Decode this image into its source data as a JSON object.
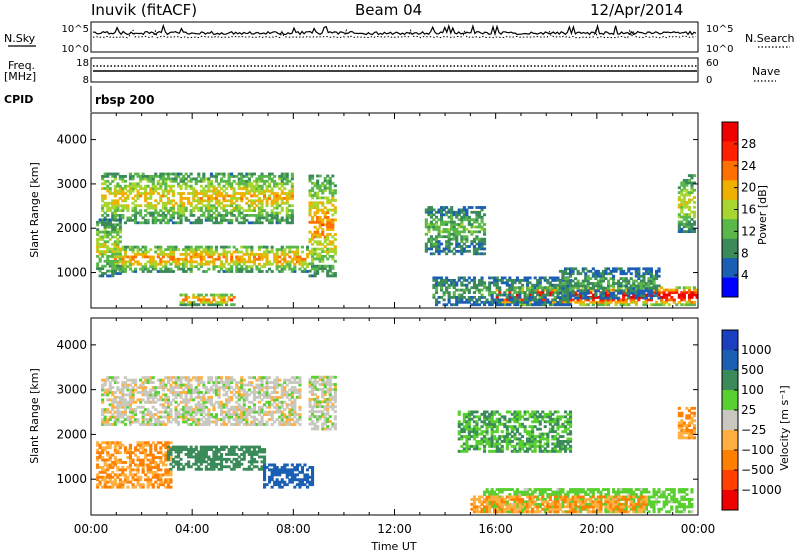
{
  "header": {
    "station": "Inuvik (fitACF)",
    "beam": "Beam 04",
    "date": "12/Apr/2014"
  },
  "noise_panel": {
    "left_label": "N.Sky",
    "right_label": "N.Search",
    "left_ticks": [
      "10^5",
      "10^0"
    ],
    "right_ticks": [
      "10^5",
      "10^0"
    ]
  },
  "freq_panel": {
    "left_label_top": "Freq.",
    "left_label_unit": "[MHz]",
    "left_ticks": [
      "18",
      "8"
    ],
    "right_label": "Nave",
    "right_ticks": [
      "60",
      "0"
    ]
  },
  "cpid_panel": {
    "label": "CPID",
    "value": "rbsp 200"
  },
  "colors": {
    "power_scale": [
      "#0000ff",
      "#1a5fb4",
      "#3a8a5a",
      "#5ab84a",
      "#a8d630",
      "#f0b000",
      "#ff7000",
      "#ff2000",
      "#ee0000"
    ],
    "velocity_scale": [
      "#ee0000",
      "#ff4000",
      "#ff8000",
      "#ffb040",
      "#c8c8c0",
      "#5ad030",
      "#3a8a5a",
      "#1a5fb4",
      "#1a40c0"
    ],
    "ground_gray": "#c6c6c0"
  },
  "chart_data": [
    {
      "type": "heatmap",
      "name": "power",
      "ylabel": "Slant Range [km]",
      "ylim": [
        200,
        4600
      ],
      "yticks": [
        "4000",
        "3000",
        "2000",
        "1000"
      ],
      "xlim": [
        0,
        24
      ],
      "colorbar": {
        "label": "Power [dB]",
        "ticks": [
          "28",
          "24",
          "20",
          "16",
          "12",
          "8",
          "4"
        ],
        "range": [
          0,
          30
        ]
      },
      "echo_regions": [
        {
          "t_start": 0.4,
          "t_end": 7.9,
          "r_low": 2100,
          "r_high": 3250,
          "power": 16
        },
        {
          "t_start": 0.8,
          "t_end": 8.5,
          "r_low": 1000,
          "r_high": 1600,
          "power": 18
        },
        {
          "t_start": 0.2,
          "t_end": 1.2,
          "r_low": 900,
          "r_high": 2200,
          "power": 14
        },
        {
          "t_start": 8.6,
          "t_end": 9.6,
          "r_low": 900,
          "r_high": 3200,
          "power": 18
        },
        {
          "t_start": 3.5,
          "t_end": 5.6,
          "r_low": 250,
          "r_high": 500,
          "power": 20
        },
        {
          "t_start": 13.2,
          "t_end": 15.5,
          "r_low": 1400,
          "r_high": 2500,
          "power": 10
        },
        {
          "t_start": 16.0,
          "t_end": 24.0,
          "r_low": 250,
          "r_high": 650,
          "power": 28
        },
        {
          "t_start": 13.5,
          "t_end": 19.0,
          "r_low": 250,
          "r_high": 900,
          "power": 8
        },
        {
          "t_start": 18.5,
          "t_end": 22.5,
          "r_low": 400,
          "r_high": 1100,
          "power": 8
        },
        {
          "t_start": 23.2,
          "t_end": 23.9,
          "r_low": 1900,
          "r_high": 3200,
          "power": 14
        }
      ]
    },
    {
      "type": "heatmap",
      "name": "velocity",
      "ylabel": "Slant Range [km]",
      "ylim": [
        200,
        4600
      ],
      "yticks": [
        "4000",
        "3000",
        "2000",
        "1000"
      ],
      "xlim": [
        0,
        24
      ],
      "xticks": [
        "00:00",
        "04:00",
        "08:00",
        "12:00",
        "16:00",
        "20:00",
        "00:00"
      ],
      "xlabel": "Time UT",
      "colorbar": {
        "label": "Velocity [m s⁻¹]",
        "ticks": [
          "1000",
          "500",
          "100",
          "25",
          "−25",
          "−100",
          "−500",
          "−1000"
        ],
        "range": [
          -1000,
          1000
        ]
      },
      "echo_regions": [
        {
          "t_start": 0.4,
          "t_end": 8.2,
          "r_low": 2200,
          "r_high": 3250,
          "velocity": 0
        },
        {
          "t_start": 0.2,
          "t_end": 3.2,
          "r_low": 800,
          "r_high": 1800,
          "velocity": -100
        },
        {
          "t_start": 3.0,
          "t_end": 6.8,
          "r_low": 1200,
          "r_high": 1700,
          "velocity": 200
        },
        {
          "t_start": 6.8,
          "t_end": 8.7,
          "r_low": 800,
          "r_high": 1300,
          "velocity": 700
        },
        {
          "t_start": 8.6,
          "t_end": 9.6,
          "r_low": 2100,
          "r_high": 3300,
          "velocity": 0
        },
        {
          "t_start": 14.5,
          "t_end": 19.0,
          "r_low": 1600,
          "r_high": 2500,
          "velocity": 100
        },
        {
          "t_start": 15.5,
          "t_end": 23.8,
          "r_low": 250,
          "r_high": 800,
          "velocity": 60
        },
        {
          "t_start": 15.0,
          "t_end": 22.0,
          "r_low": 250,
          "r_high": 600,
          "velocity": -100
        },
        {
          "t_start": 23.2,
          "t_end": 23.9,
          "r_low": 1900,
          "r_high": 2600,
          "velocity": -100
        }
      ]
    }
  ]
}
